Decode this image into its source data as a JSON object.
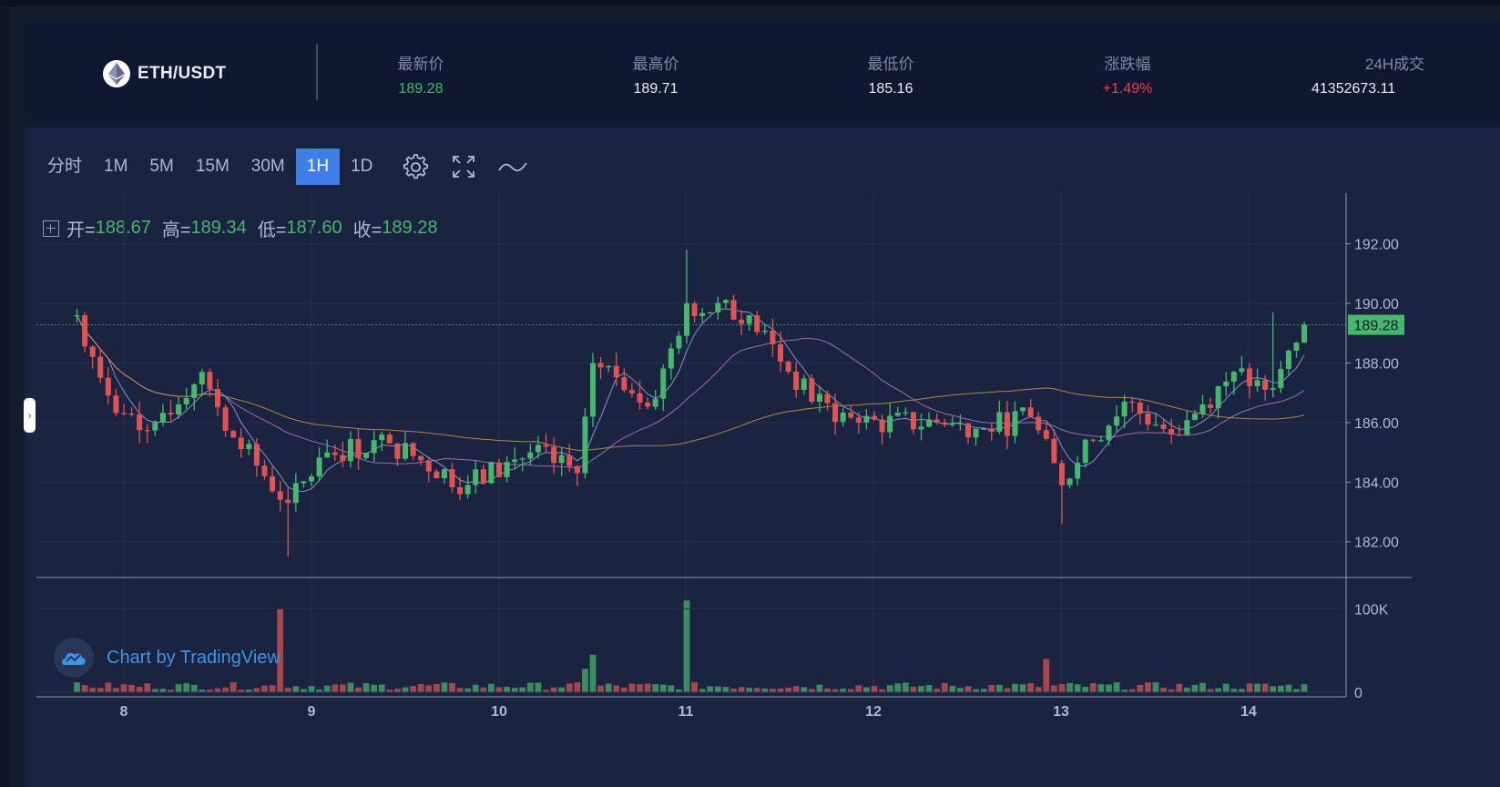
{
  "header": {
    "pair": "ETH/USDT",
    "stats": [
      {
        "label": "最新价",
        "value": "189.28",
        "color": "#45b86b"
      },
      {
        "label": "最高价",
        "value": "189.71",
        "color": "#e8edf7"
      },
      {
        "label": "最低价",
        "value": "185.16",
        "color": "#e8edf7"
      },
      {
        "label": "涨跌幅",
        "value": "+1.49%",
        "color": "#f23b44"
      },
      {
        "label": "24H成交",
        "value": "41352673.11",
        "color": "#e8edf7"
      }
    ]
  },
  "toolbar": {
    "intervals": [
      "分时",
      "1M",
      "5M",
      "15M",
      "30M",
      "1H",
      "1D"
    ],
    "active": "1H",
    "icons": [
      "settings-icon",
      "fullscreen-icon",
      "indicator-icon"
    ]
  },
  "ohlc": {
    "open_label": "开=",
    "open": "188.67",
    "high_label": "高=",
    "high": "189.34",
    "low_label": "低=",
    "low": "187.60",
    "close_label": "收=",
    "close": "189.28"
  },
  "branding": {
    "text": "Chart by TradingView"
  },
  "colors": {
    "up": "#45b86b",
    "down": "#e15353",
    "ma_fast": "#9fa6e8",
    "ma_mid": "#b07cc8",
    "ma_slow": "#c79a45",
    "accent": "#3e7ee8"
  },
  "chart_data": {
    "type": "candlestick",
    "interval": "1H",
    "x_ticks": [
      "8",
      "9",
      "10",
      "11",
      "12",
      "13",
      "14"
    ],
    "y_ticks": [
      "192.00",
      "190.00",
      "188.00",
      "186.00",
      "184.00",
      "182.00"
    ],
    "ylim": [
      180.8,
      193.7
    ],
    "last_price": "189.28",
    "volume_ticks": [
      "100K",
      "0"
    ],
    "volume_max": 120000,
    "grid": true,
    "key_points": [
      {
        "x": "7 18:00",
        "close": 189.6
      },
      {
        "x": "7 21:00",
        "close": 187.5
      },
      {
        "x": "8 00:00",
        "close": 186.3
      },
      {
        "x": "8 04:00",
        "close": 186.0
      },
      {
        "x": "8 10:00",
        "close": 187.7
      },
      {
        "x": "8 14:00",
        "close": 185.5
      },
      {
        "x": "8 21:00",
        "close": 183.3
      },
      {
        "x": "9 02:00",
        "close": 185.0
      },
      {
        "x": "9 10:00",
        "close": 185.3
      },
      {
        "x": "9 20:00",
        "close": 183.9
      },
      {
        "x": "10 04:00",
        "close": 185.0
      },
      {
        "x": "10 10:00",
        "close": 184.3
      },
      {
        "x": "10 12:00",
        "close": 188.0
      },
      {
        "x": "10 20:00",
        "close": 186.8
      },
      {
        "x": "11 00:00",
        "close": 190.0
      },
      {
        "x": "11 08:00",
        "close": 189.6
      },
      {
        "x": "11 16:00",
        "close": 186.7
      },
      {
        "x": "11 22:00",
        "close": 186.0
      },
      {
        "x": "12 08:00",
        "close": 186.0
      },
      {
        "x": "12 14:00",
        "close": 185.8
      },
      {
        "x": "12 20:00",
        "close": 186.2
      },
      {
        "x": "13 00:00",
        "close": 183.9
      },
      {
        "x": "13 04:00",
        "close": 185.4
      },
      {
        "x": "13 08:00",
        "close": 186.7
      },
      {
        "x": "13 14:00",
        "close": 185.6
      },
      {
        "x": "13 22:00",
        "close": 187.7
      },
      {
        "x": "14 02:00",
        "close": 187.1
      },
      {
        "x": "14 04:00",
        "close": 187.8
      },
      {
        "x": "14 07:00",
        "close": 189.28
      }
    ],
    "volume_spikes": [
      {
        "x": "8 20:00",
        "volume": 100000
      },
      {
        "x": "10 12:00",
        "volume": 45000
      },
      {
        "x": "11 00:00",
        "volume": 110000
      },
      {
        "x": "12 22:00",
        "volume": 40000
      }
    ]
  }
}
